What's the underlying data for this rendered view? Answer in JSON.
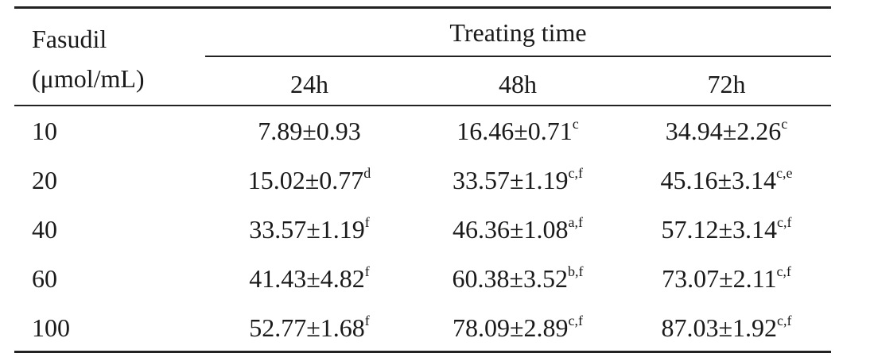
{
  "table": {
    "row_header_line1": "Fasudil",
    "row_header_line2": "(μmol/mL)",
    "group_header": "Treating time",
    "columns": [
      "24h",
      "48h",
      "72h"
    ],
    "rows": [
      {
        "dose": "10",
        "cells": [
          {
            "v": "7.89±0.93",
            "s": ""
          },
          {
            "v": "16.46±0.71",
            "s": "c"
          },
          {
            "v": "34.94±2.26",
            "s": "c"
          }
        ]
      },
      {
        "dose": "20",
        "cells": [
          {
            "v": "15.02±0.77",
            "s": "d"
          },
          {
            "v": "33.57±1.19",
            "s": "c,f"
          },
          {
            "v": "45.16±3.14",
            "s": "c,e"
          }
        ]
      },
      {
        "dose": "40",
        "cells": [
          {
            "v": "33.57±1.19",
            "s": "f"
          },
          {
            "v": "46.36±1.08",
            "s": "a,f"
          },
          {
            "v": "57.12±3.14",
            "s": "c,f"
          }
        ]
      },
      {
        "dose": "60",
        "cells": [
          {
            "v": "41.43±4.82",
            "s": "f"
          },
          {
            "v": "60.38±3.52",
            "s": "b,f"
          },
          {
            "v": "73.07±2.11",
            "s": "c,f"
          }
        ]
      },
      {
        "dose": "100",
        "cells": [
          {
            "v": "52.77±1.68",
            "s": "f"
          },
          {
            "v": "78.09±2.89",
            "s": "c,f"
          },
          {
            "v": "87.03±1.92",
            "s": "c,f"
          }
        ]
      }
    ]
  }
}
